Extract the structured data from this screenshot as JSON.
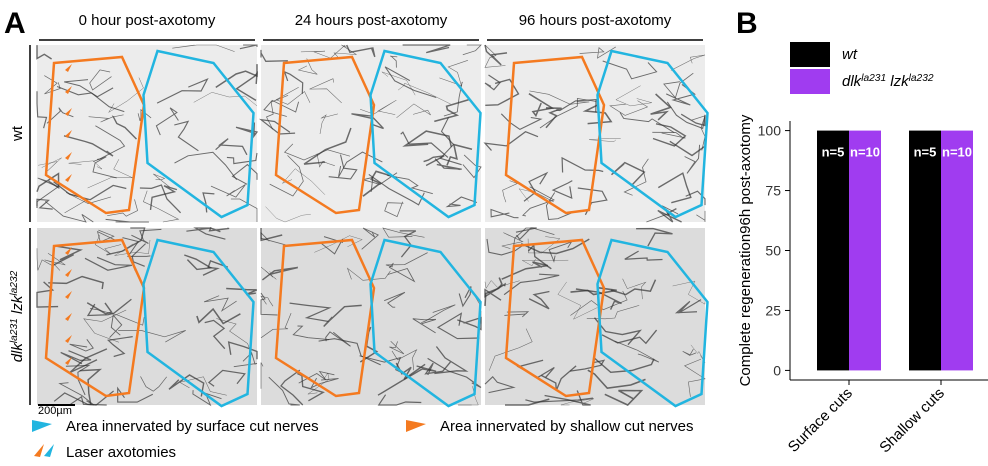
{
  "panel_a": {
    "label": "A",
    "columns": [
      "0 hour post-axotomy",
      "24 hours post-axotomy",
      "96 hours post-axotomy"
    ],
    "rows": [
      {
        "parts": [
          {
            "text": "wt"
          }
        ]
      },
      {
        "parts": [
          {
            "text": "dlk"
          },
          {
            "text": "la231",
            "sup": true
          },
          {
            "text": " lzk"
          },
          {
            "text": "la232",
            "sup": true
          }
        ]
      }
    ],
    "scale_bar": "200µm",
    "legend": [
      "Area innervated by surface cut nerves",
      "Area innervated by shallow cut nerves",
      "Laser axotomies"
    ]
  },
  "chart_data": {
    "type": "bar",
    "label": "B",
    "y_label": "Complete regeneration96h post-axotomy",
    "categories": [
      "Surface cuts",
      "Shallow cuts"
    ],
    "series": [
      {
        "name_parts": [
          {
            "text": "wt"
          }
        ],
        "color": "#000000",
        "values": [
          100,
          100
        ],
        "n_labels": [
          "n=5",
          "n=5"
        ]
      },
      {
        "name_parts": [
          {
            "text": "dlk"
          },
          {
            "text": "la231",
            "sup": true
          },
          {
            "text": " lzk"
          },
          {
            "text": "la232",
            "sup": true
          }
        ],
        "color": "#a03cf0",
        "values": [
          100,
          100
        ],
        "n_labels": [
          "n=10",
          "n=10"
        ]
      }
    ],
    "ylim": [
      -4,
      104
    ],
    "yticks": [
      0,
      25,
      50,
      75,
      100
    ],
    "grid": false
  }
}
